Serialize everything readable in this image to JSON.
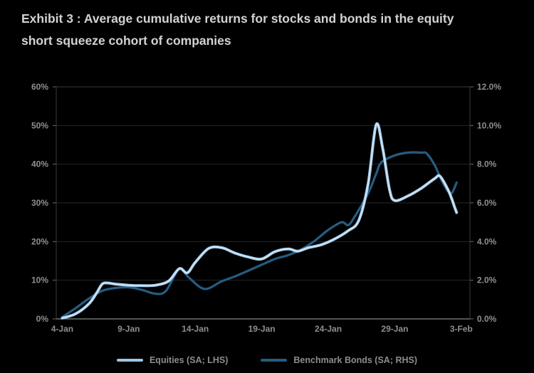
{
  "title": {
    "line1": "Exhibit 3 : Average cumulative returns for stocks and bonds in the equity",
    "line2": "short squeeze cohort of companies"
  },
  "colors": {
    "background": "#000000",
    "title_text": "#d2d2d2",
    "axis_text": "#8f8f8f",
    "grid": "#262626",
    "plot_border": "#3a3a3a",
    "axis_line": "#8a8a8a",
    "tick": "#6e6e6e",
    "equities_line": "#9ec5e3",
    "equities_core": "#d8eaf8",
    "bonds_line": "#265c80"
  },
  "chart_data": {
    "type": "line",
    "title": "Average cumulative returns for stocks and bonds in the equity short squeeze cohort of companies",
    "x_axis": {
      "tick_days": [
        4,
        9,
        14,
        19,
        24,
        29,
        34
      ],
      "tick_labels": [
        "4-Jan",
        "9-Jan",
        "14-Jan",
        "19-Jan",
        "24-Jan",
        "29-Jan",
        "3-Feb"
      ],
      "range_days": [
        3.55,
        34.65
      ],
      "note_day_index": "days 4-31 = January dates, 32-34 = Feb 1-3"
    },
    "y_left": {
      "min": 0,
      "max": 60,
      "step": 10,
      "tick_labels": [
        "60%",
        "50%",
        "40%",
        "30%",
        "20%",
        "10%",
        "0%"
      ]
    },
    "y_right": {
      "min": 0,
      "max": 12,
      "step": 2,
      "tick_labels": [
        "12.0%",
        "10.0%",
        "8.0%",
        "6.0%",
        "4.0%",
        "2.0%",
        "0.0%"
      ]
    },
    "grid": "horizontal-only",
    "legend_position": "bottom-center",
    "series": [
      {
        "name": "Equities (SA; LHS)",
        "axis": "left",
        "color": "#9ec5e3",
        "core_color": "#d8eaf8",
        "width": 4,
        "core_width": 1.6,
        "points": [
          [
            4,
            0.2
          ],
          [
            5,
            1.3
          ],
          [
            6,
            3.9
          ],
          [
            6.6,
            6.8
          ],
          [
            7,
            9.0
          ],
          [
            7.4,
            9.3
          ],
          [
            8,
            9.0
          ],
          [
            9,
            8.7
          ],
          [
            10,
            8.6
          ],
          [
            11,
            8.7
          ],
          [
            12,
            9.8
          ],
          [
            12.8,
            13.0
          ],
          [
            13.4,
            11.9
          ],
          [
            14,
            14.6
          ],
          [
            15,
            18.2
          ],
          [
            16,
            18.4
          ],
          [
            17,
            17.0
          ],
          [
            18,
            16.0
          ],
          [
            19,
            15.5
          ],
          [
            20,
            17.4
          ],
          [
            21,
            18.1
          ],
          [
            21.7,
            17.5
          ],
          [
            22.5,
            18.4
          ],
          [
            23.5,
            19.2
          ],
          [
            24.5,
            20.7
          ],
          [
            25.5,
            22.8
          ],
          [
            26.3,
            25.5
          ],
          [
            27,
            35.0
          ],
          [
            27.6,
            50.2
          ],
          [
            28.1,
            44.0
          ],
          [
            28.6,
            33.5
          ],
          [
            29,
            30.6
          ],
          [
            30,
            31.8
          ],
          [
            31,
            33.8
          ],
          [
            32,
            36.3
          ],
          [
            32.4,
            36.9
          ],
          [
            33,
            33.4
          ],
          [
            33.3,
            30.9
          ],
          [
            33.5,
            28.9
          ],
          [
            33.65,
            27.5
          ]
        ]
      },
      {
        "name": "Benchmark Bonds (SA; RHS)",
        "axis": "right",
        "color": "#265c80",
        "width": 3.2,
        "points": [
          [
            4,
            0.1
          ],
          [
            5,
            0.55
          ],
          [
            6,
            1.05
          ],
          [
            7,
            1.45
          ],
          [
            8,
            1.6
          ],
          [
            9,
            1.63
          ],
          [
            10,
            1.5
          ],
          [
            11,
            1.3
          ],
          [
            11.8,
            1.45
          ],
          [
            12.8,
            2.6
          ],
          [
            13.5,
            2.15
          ],
          [
            14.7,
            1.55
          ],
          [
            16,
            1.95
          ],
          [
            17,
            2.2
          ],
          [
            18,
            2.5
          ],
          [
            19,
            2.8
          ],
          [
            20,
            3.1
          ],
          [
            21,
            3.3
          ],
          [
            22,
            3.6
          ],
          [
            23,
            4.05
          ],
          [
            24,
            4.6
          ],
          [
            25,
            5.0
          ],
          [
            25.5,
            4.85
          ],
          [
            26,
            5.3
          ],
          [
            27,
            6.5
          ],
          [
            27.6,
            7.5
          ],
          [
            28,
            8.1
          ],
          [
            29,
            8.45
          ],
          [
            30,
            8.6
          ],
          [
            31,
            8.6
          ],
          [
            31.4,
            8.55
          ],
          [
            32,
            7.95
          ],
          [
            32.5,
            7.2
          ],
          [
            33,
            6.6
          ],
          [
            33.3,
            6.52
          ],
          [
            33.65,
            7.05
          ]
        ]
      }
    ]
  }
}
